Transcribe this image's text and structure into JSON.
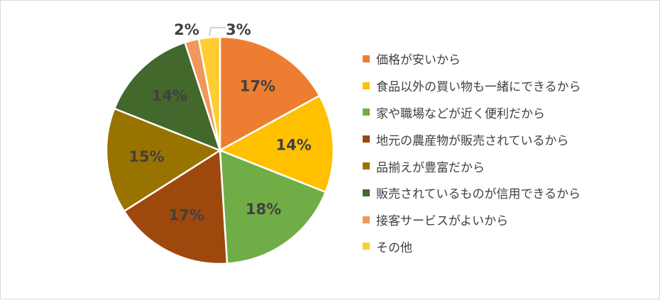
{
  "chart_data": {
    "type": "pie",
    "categories": [
      "価格が安いから",
      "食品以外の買い物も一緒にできるから",
      "家や職場などが近く便利だから",
      "地元の農産物が販売されているから",
      "品揃えが豊富だから",
      "販売されているものが信用できるから",
      "接客サービスがよいから",
      "その他"
    ],
    "values": [
      17,
      14,
      18,
      17,
      15,
      14,
      2,
      3
    ],
    "labels": [
      "17%",
      "14%",
      "18%",
      "17%",
      "15%",
      "14%",
      "2%",
      "3%"
    ],
    "colors": [
      "#ed7d31",
      "#ffc000",
      "#70ad47",
      "#9e480e",
      "#997300",
      "#43682b",
      "#f1975a",
      "#ffcd33"
    ],
    "legend_position": "right"
  }
}
